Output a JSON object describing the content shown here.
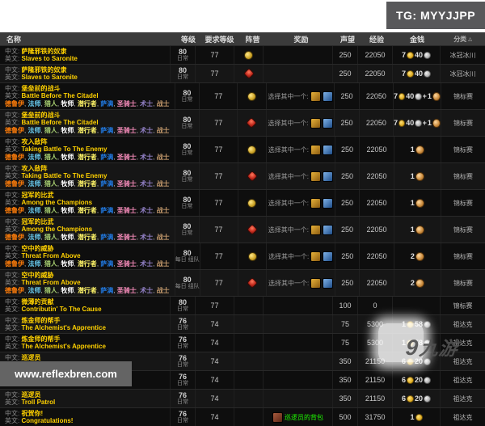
{
  "overlays": {
    "tg_badge": "TG: MYYJJPP",
    "site_badge": "www.reflexbren.com",
    "watermark_mark": "9",
    "watermark_text": "九游"
  },
  "table": {
    "headers": {
      "name": "名称",
      "level": "等级",
      "req": "要求等级",
      "faction": "阵营",
      "reward": "奖励",
      "rep": "声望",
      "xp": "经验",
      "money": "金钱",
      "cat": "分类"
    },
    "sort_indicator": "△",
    "labels": {
      "cn": "中文:",
      "en": "英文:",
      "choose_one": "选择其中一个:",
      "plus": "+"
    },
    "all_classes": [
      "德鲁伊",
      "法师",
      "猎人",
      "牧师",
      "潜行者",
      "萨满",
      "圣骑士",
      "术士",
      "战士"
    ],
    "class_separator": ", ",
    "class_colors": {
      "德鲁伊": "#FF7D0A",
      "法师": "#69CCF0",
      "猎人": "#ABD473",
      "牧师": "#FFFFFF",
      "潜行者": "#FFF569",
      "萨满": "#2178DE",
      "圣骑士": "#F58CBA",
      "术士": "#9482C9",
      "战士": "#C79C6E"
    },
    "colors": {
      "quest_name": "#ffd100",
      "item_green": "#1eff00",
      "header_bg": "#3b3b3b"
    },
    "rows": [
      {
        "cn": "萨隆邪铁的奴隶",
        "en": "Slaves to Saronite",
        "classes": false,
        "level": "80",
        "tag": "日常",
        "req": "77",
        "faction": "alliance",
        "reward": "",
        "reward_item": "",
        "rep": "250",
        "xp": "22050",
        "money": {
          "g": "7",
          "s": "40",
          "seal": ""
        },
        "cat": "冰冠冰川"
      },
      {
        "cn": "萨隆邪铁的奴隶",
        "en": "Slaves to Saronite",
        "classes": false,
        "level": "80",
        "tag": "日常",
        "req": "77",
        "faction": "horde",
        "reward": "",
        "reward_item": "",
        "rep": "250",
        "xp": "22050",
        "money": {
          "g": "7",
          "s": "40",
          "seal": ""
        },
        "cat": "冰冠冰川"
      },
      {
        "cn": "堡垒前的战斗",
        "en": "Battle Before The Citadel",
        "classes": true,
        "level": "80",
        "tag": "日常",
        "req": "77",
        "faction": "alliance",
        "reward": "choose",
        "reward_item": "",
        "rep": "250",
        "xp": "22050",
        "money": {
          "g": "7",
          "s": "40",
          "seal": "1"
        },
        "cat": "锦标赛"
      },
      {
        "cn": "堡垒前的战斗",
        "en": "Battle Before The Citadel",
        "classes": true,
        "level": "80",
        "tag": "日常",
        "req": "77",
        "faction": "horde",
        "reward": "choose",
        "reward_item": "",
        "rep": "250",
        "xp": "22050",
        "money": {
          "g": "7",
          "s": "40",
          "seal": "1"
        },
        "cat": "锦标赛"
      },
      {
        "cn": "攻入敌阵",
        "en": "Taking Battle To The Enemy",
        "classes": true,
        "level": "80",
        "tag": "日常",
        "req": "77",
        "faction": "alliance",
        "reward": "choose",
        "reward_item": "",
        "rep": "250",
        "xp": "22050",
        "money": {
          "g": "",
          "s": "",
          "seal": "1"
        },
        "cat": "锦标赛"
      },
      {
        "cn": "攻入敌阵",
        "en": "Taking Battle To The Enemy",
        "classes": true,
        "level": "80",
        "tag": "日常",
        "req": "77",
        "faction": "horde",
        "reward": "choose",
        "reward_item": "",
        "rep": "250",
        "xp": "22050",
        "money": {
          "g": "",
          "s": "",
          "seal": "1"
        },
        "cat": "锦标赛"
      },
      {
        "cn": "冠军的比武",
        "en": "Among the Champions",
        "classes": true,
        "level": "80",
        "tag": "日常",
        "req": "77",
        "faction": "alliance",
        "reward": "choose",
        "reward_item": "",
        "rep": "250",
        "xp": "22050",
        "money": {
          "g": "",
          "s": "",
          "seal": "1"
        },
        "cat": "锦标赛"
      },
      {
        "cn": "冠军的比武",
        "en": "Among the Champions",
        "classes": true,
        "level": "80",
        "tag": "日常",
        "req": "77",
        "faction": "horde",
        "reward": "choose",
        "reward_item": "",
        "rep": "250",
        "xp": "22050",
        "money": {
          "g": "",
          "s": "",
          "seal": "1"
        },
        "cat": "锦标赛"
      },
      {
        "cn": "空中的威胁",
        "en": "Threat From Above",
        "classes": true,
        "level": "80",
        "tag": "每日 组队",
        "req": "77",
        "faction": "alliance",
        "reward": "choose",
        "reward_item": "",
        "rep": "250",
        "xp": "22050",
        "money": {
          "g": "",
          "s": "",
          "seal": "2"
        },
        "cat": "锦标赛"
      },
      {
        "cn": "空中的威胁",
        "en": "Threat From Above",
        "classes": true,
        "level": "80",
        "tag": "每日 组队",
        "req": "77",
        "faction": "horde",
        "reward": "choose",
        "reward_item": "",
        "rep": "250",
        "xp": "22050",
        "money": {
          "g": "",
          "s": "",
          "seal": "2"
        },
        "cat": "锦标赛"
      },
      {
        "cn": "微薄的贡献",
        "en": "Contributin' To The Cause",
        "classes": false,
        "level": "80",
        "tag": "日常",
        "req": "77",
        "faction": "",
        "reward": "",
        "reward_item": "",
        "rep": "100",
        "xp": "0",
        "money": {
          "g": "",
          "s": "",
          "seal": ""
        },
        "cat": "锦标赛"
      },
      {
        "cn": "炼金师的帮手",
        "en": "The Alchemist's Apprentice",
        "classes": false,
        "level": "76",
        "tag": "日常",
        "req": "74",
        "faction": "",
        "reward": "",
        "reward_item": "",
        "rep": "75",
        "xp": "5300",
        "money": {
          "g": "1",
          "s": "58",
          "seal": ""
        },
        "cat": "祖达克"
      },
      {
        "cn": "炼金师的帮手",
        "en": "The Alchemist's Apprentice",
        "classes": false,
        "level": "76",
        "tag": "日常",
        "req": "74",
        "faction": "",
        "reward": "",
        "reward_item": "",
        "rep": "75",
        "xp": "5300",
        "money": {
          "g": "1",
          "s": "58",
          "seal": ""
        },
        "cat": "祖达克"
      },
      {
        "cn": "巡逻员",
        "en": "Troll Patrol",
        "classes": false,
        "level": "76",
        "tag": "日常",
        "req": "74",
        "faction": "",
        "reward": "",
        "reward_item": "",
        "rep": "350",
        "xp": "21150",
        "money": {
          "g": "6",
          "s": "20",
          "seal": ""
        },
        "cat": "祖达克"
      },
      {
        "cn": "巡逻员",
        "en": "Troll Patrol",
        "classes": false,
        "level": "76",
        "tag": "日常",
        "req": "74",
        "faction": "",
        "reward": "",
        "reward_item": "",
        "rep": "350",
        "xp": "21150",
        "money": {
          "g": "6",
          "s": "20",
          "seal": ""
        },
        "cat": "祖达克"
      },
      {
        "cn": "巡逻员",
        "en": "Troll Patrol",
        "classes": false,
        "level": "76",
        "tag": "日常",
        "req": "74",
        "faction": "",
        "reward": "",
        "reward_item": "",
        "rep": "350",
        "xp": "21150",
        "money": {
          "g": "6",
          "s": "20",
          "seal": ""
        },
        "cat": "祖达克"
      },
      {
        "cn": "祝贺你!",
        "en": "Congratulations!",
        "classes": false,
        "level": "76",
        "tag": "日常",
        "req": "74",
        "faction": "",
        "reward": "item",
        "reward_item": "巡逻员的背包",
        "rep": "500",
        "xp": "31750",
        "money": {
          "g": "1",
          "s": "",
          "seal": ""
        },
        "cat": "祖达克"
      }
    ]
  }
}
